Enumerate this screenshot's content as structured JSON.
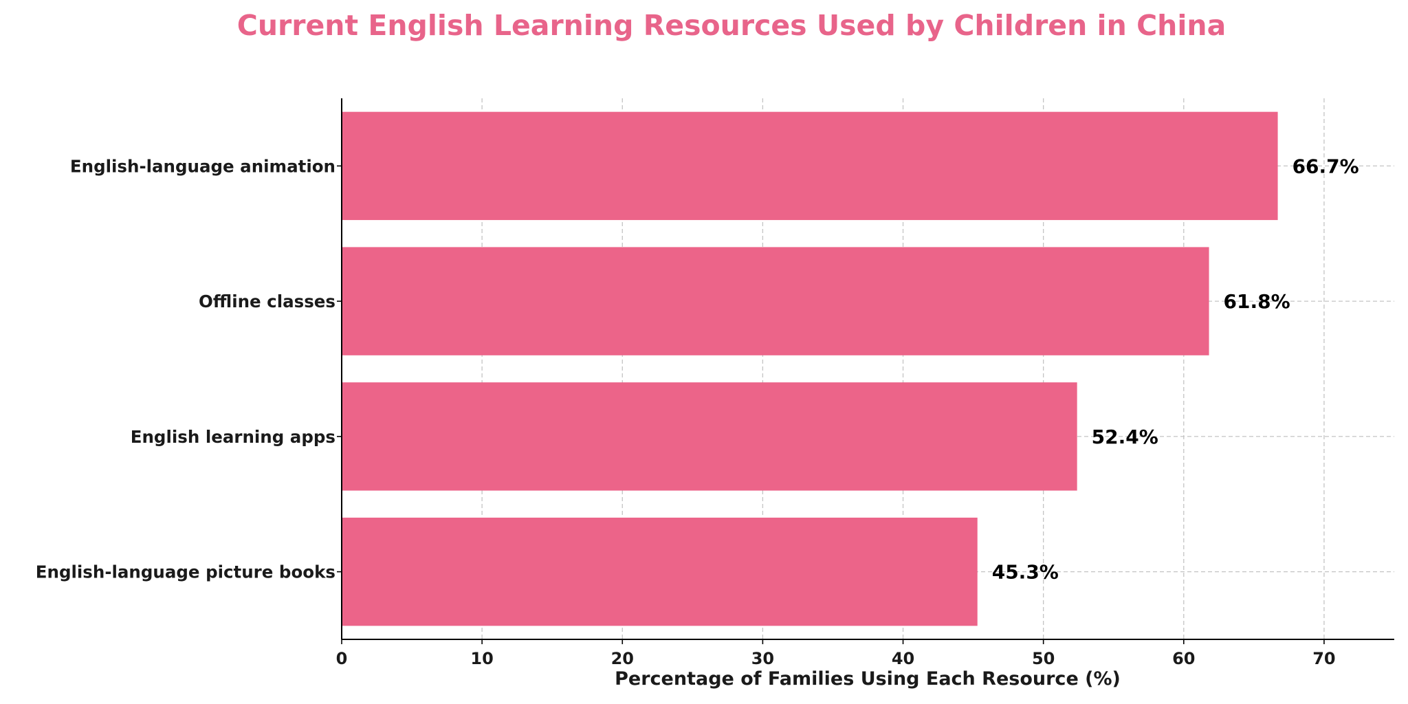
{
  "chart_data": {
    "type": "bar",
    "orientation": "horizontal",
    "title": "Current English Learning Resources Used by Children in China",
    "xlabel": "Percentage of Families Using Each Resource (%)",
    "ylabel": "",
    "categories": [
      "English-language picture books",
      "English learning apps",
      "Offline classes",
      "English-language animation"
    ],
    "values": [
      45.3,
      52.4,
      61.8,
      66.7
    ],
    "data_labels": [
      "45.3%",
      "52.4%",
      "61.8%",
      "66.7%"
    ],
    "xlim": [
      0,
      75
    ],
    "xticks": [
      0,
      10,
      20,
      30,
      40,
      50,
      60,
      70
    ],
    "xtick_labels": [
      "0",
      "10",
      "20",
      "30",
      "40",
      "50",
      "60",
      "70"
    ],
    "grid": true,
    "colors": {
      "bar": "#EC6489",
      "title": "#E8648A"
    }
  }
}
